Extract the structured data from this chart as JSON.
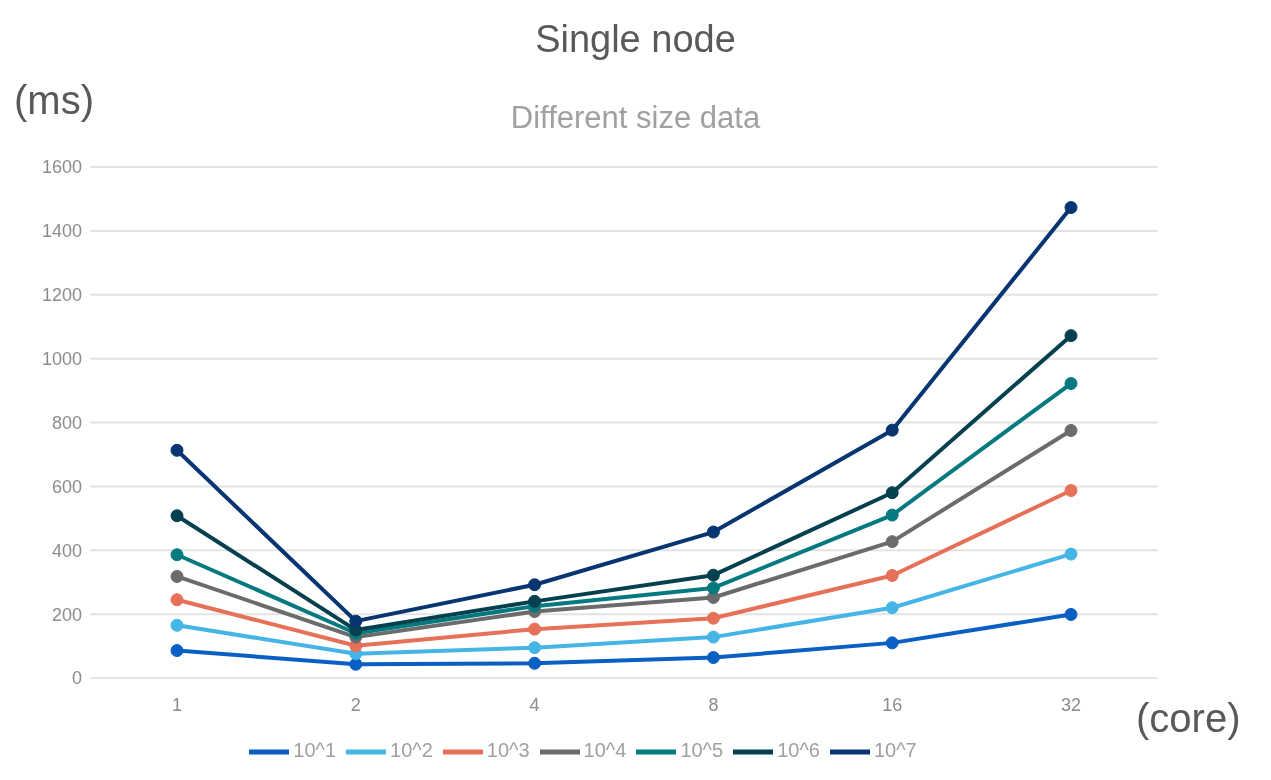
{
  "chart_data": {
    "type": "line",
    "title": "Single node",
    "subtitle": "Different size data",
    "ylabel": "(ms)",
    "xlabel": "(core)",
    "categories": [
      "1",
      "2",
      "4",
      "8",
      "16",
      "32"
    ],
    "series": [
      {
        "name": "10^1",
        "color": "#0a5fc4",
        "values": [
          86,
          43,
          46,
          64,
          110,
          199
        ]
      },
      {
        "name": "10^2",
        "color": "#45b5e6",
        "values": [
          165,
          76,
          95,
          128,
          220,
          388
        ]
      },
      {
        "name": "10^3",
        "color": "#e67158",
        "values": [
          245,
          101,
          153,
          187,
          321,
          587
        ]
      },
      {
        "name": "10^4",
        "color": "#6b6b6b",
        "values": [
          318,
          128,
          208,
          252,
          427,
          775
        ]
      },
      {
        "name": "10^5",
        "color": "#047a80",
        "values": [
          386,
          140,
          225,
          282,
          510,
          922
        ]
      },
      {
        "name": "10^6",
        "color": "#05404f",
        "values": [
          508,
          150,
          240,
          322,
          580,
          1072
        ]
      },
      {
        "name": "10^7",
        "color": "#073572",
        "values": [
          713,
          178,
          292,
          457,
          776,
          1473
        ]
      }
    ],
    "ylim": [
      0,
      1600
    ],
    "yticks": [
      0,
      200,
      400,
      600,
      800,
      1000,
      1200,
      1400,
      1600
    ],
    "grid": "y",
    "legend": "bottom",
    "marker": "circle",
    "line_style": "solid"
  }
}
